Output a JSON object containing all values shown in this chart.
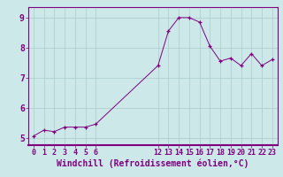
{
  "x": [
    0,
    1,
    2,
    3,
    4,
    5,
    6,
    12,
    13,
    14,
    15,
    16,
    17,
    18,
    19,
    20,
    21,
    22,
    23
  ],
  "y": [
    5.05,
    5.25,
    5.2,
    5.35,
    5.35,
    5.35,
    5.45,
    7.4,
    8.55,
    9.0,
    9.0,
    8.85,
    8.05,
    7.55,
    7.65,
    7.4,
    7.8,
    7.4,
    7.6
  ],
  "line_color": "#800080",
  "marker_color": "#800080",
  "bg_color": "#cce8e8",
  "grid_color": "#aacccc",
  "axis_color": "#800080",
  "xlabel": "Windchill (Refroidissement éolien,°C)",
  "xlabel_color": "#800080",
  "xticks": [
    0,
    1,
    2,
    3,
    4,
    5,
    6,
    12,
    13,
    14,
    15,
    16,
    17,
    18,
    19,
    20,
    21,
    22,
    23
  ],
  "yticks": [
    5,
    6,
    7,
    8,
    9
  ],
  "xlim": [
    -0.5,
    23.5
  ],
  "ylim": [
    4.75,
    9.35
  ],
  "tick_label_size": 6,
  "xlabel_size": 7
}
